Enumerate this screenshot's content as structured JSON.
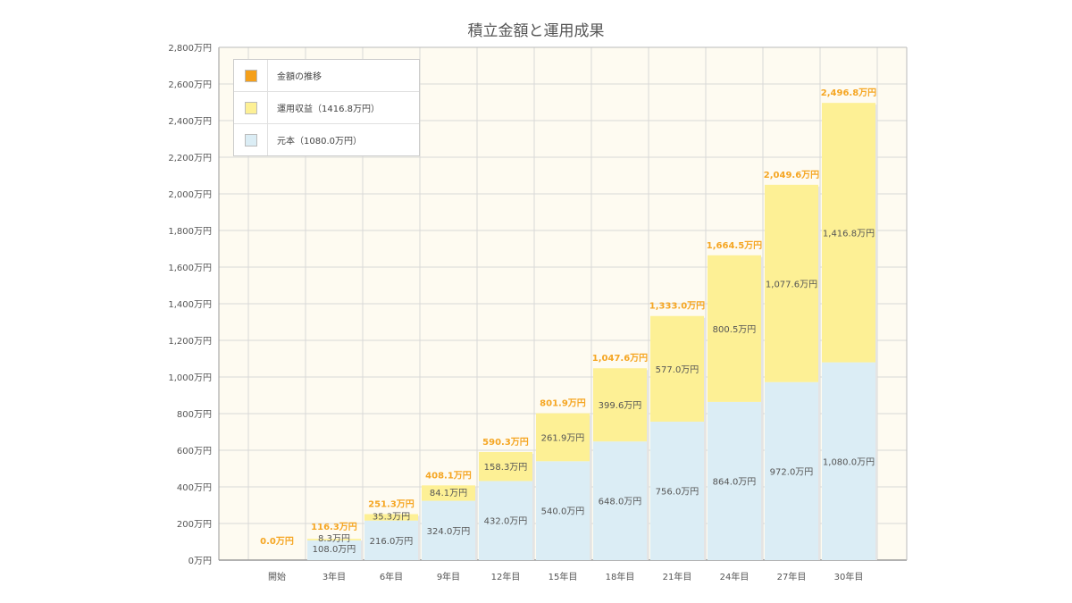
{
  "title": "積立金額と運用成果",
  "colors": {
    "principal": "#dbedf5",
    "gain": "#fdf095",
    "trend": "#f5a01a",
    "total_label": "#f5a623",
    "plot_bg": "#fefbf1",
    "grid": "#d8d8d8"
  },
  "legend": [
    {
      "label": "金額の推移",
      "swatch": "trend"
    },
    {
      "label": "運用収益（1416.8万円）",
      "swatch": "gain"
    },
    {
      "label": "元本（1080.0万円）",
      "swatch": "principal"
    }
  ],
  "chart_data": {
    "type": "bar",
    "stacked": true,
    "title": "積立金額と運用成果",
    "unit": "万円",
    "categories": [
      "開始",
      "3年目",
      "6年目",
      "9年目",
      "12年目",
      "15年目",
      "18年目",
      "21年目",
      "24年目",
      "27年目",
      "30年目"
    ],
    "series": [
      {
        "name": "元本（1080.0万円）",
        "key": "principal",
        "values": [
          0,
          108.0,
          216.0,
          324.0,
          432.0,
          540.0,
          648.0,
          756.0,
          864.0,
          972.0,
          1080.0
        ],
        "labels": [
          "",
          "108.0万円",
          "216.0万円",
          "324.0万円",
          "432.0万円",
          "540.0万円",
          "648.0万円",
          "756.0万円",
          "864.0万円",
          "972.0万円",
          "1,080.0万円"
        ]
      },
      {
        "name": "運用収益（1416.8万円）",
        "key": "gain",
        "values": [
          0,
          8.3,
          35.3,
          84.1,
          158.3,
          261.9,
          399.6,
          577.0,
          800.5,
          1077.6,
          1416.8
        ],
        "labels": [
          "",
          "8.3万円",
          "35.3万円",
          "84.1万円",
          "158.3万円",
          "261.9万円",
          "399.6万円",
          "577.0万円",
          "800.5万円",
          "1,077.6万円",
          "1,416.8万円"
        ]
      }
    ],
    "totals": [
      0.0,
      116.3,
      251.3,
      408.1,
      590.3,
      801.9,
      1047.6,
      1333.0,
      1664.5,
      2049.6,
      2496.8
    ],
    "total_labels": [
      "0.0万円",
      "116.3万円",
      "251.3万円",
      "408.1万円",
      "590.3万円",
      "801.9万円",
      "1,047.6万円",
      "1,333.0万円",
      "1,664.5万円",
      "2,049.6万円",
      "2,496.8万円"
    ],
    "ylim": [
      0,
      2800
    ],
    "yticks": [
      0,
      200,
      400,
      600,
      800,
      1000,
      1200,
      1400,
      1600,
      1800,
      2000,
      2200,
      2400,
      2600,
      2800
    ],
    "ytick_labels": [
      "0万円",
      "200万円",
      "400万円",
      "600万円",
      "800万円",
      "1,000万円",
      "1,200万円",
      "1,400万円",
      "1,600万円",
      "1,800万円",
      "2,000万円",
      "2,200万円",
      "2,400万円",
      "2,600万円",
      "2,800万円"
    ],
    "grid": true,
    "legend_position": "top-left"
  }
}
